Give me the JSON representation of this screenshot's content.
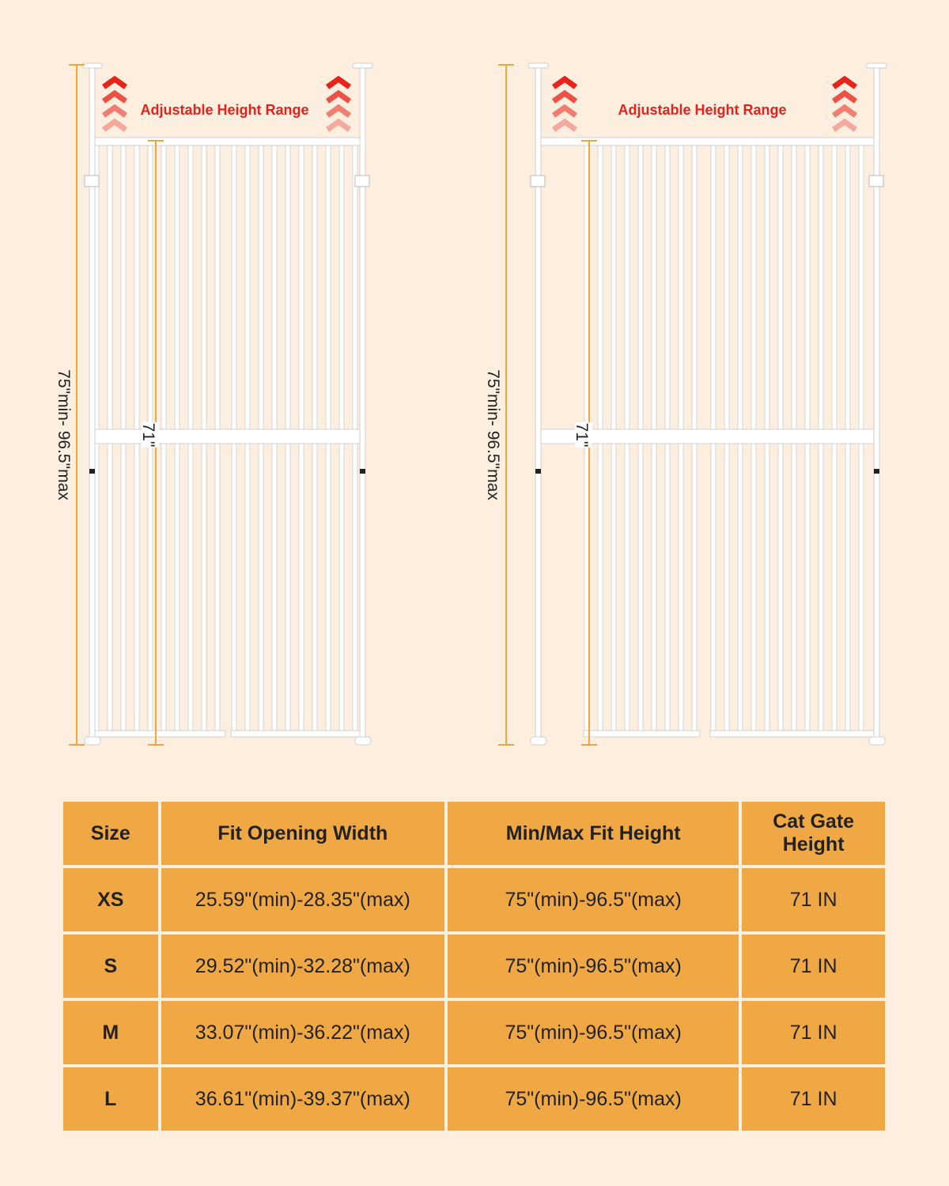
{
  "gates": [
    {
      "range_label": "Adjustable Height Range",
      "height_label": "75\"min- 96.5\"max",
      "gate_height": "71\""
    },
    {
      "range_label": "Adjustable Height Range",
      "height_label": "75\"min- 96.5\"max",
      "gate_height": "71\""
    }
  ],
  "table": {
    "headers": [
      "Size",
      "Fit Opening Width",
      "Min/Max Fit Height",
      "Cat Gate Height"
    ],
    "rows": [
      [
        "XS",
        "25.59\"(min)-28.35\"(max)",
        "75\"(min)-96.5\"(max)",
        "71 IN"
      ],
      [
        "S",
        "29.52\"(min)-32.28\"(max)",
        "75\"(min)-96.5\"(max)",
        "71 IN"
      ],
      [
        "M",
        "33.07\"(min)-36.22\"(max)",
        "75\"(min)-96.5\"(max)",
        "71 IN"
      ],
      [
        "L",
        "36.61\"(min)-39.37\"(max)",
        "75\"(min)-96.5\"(max)",
        "71 IN"
      ]
    ]
  }
}
